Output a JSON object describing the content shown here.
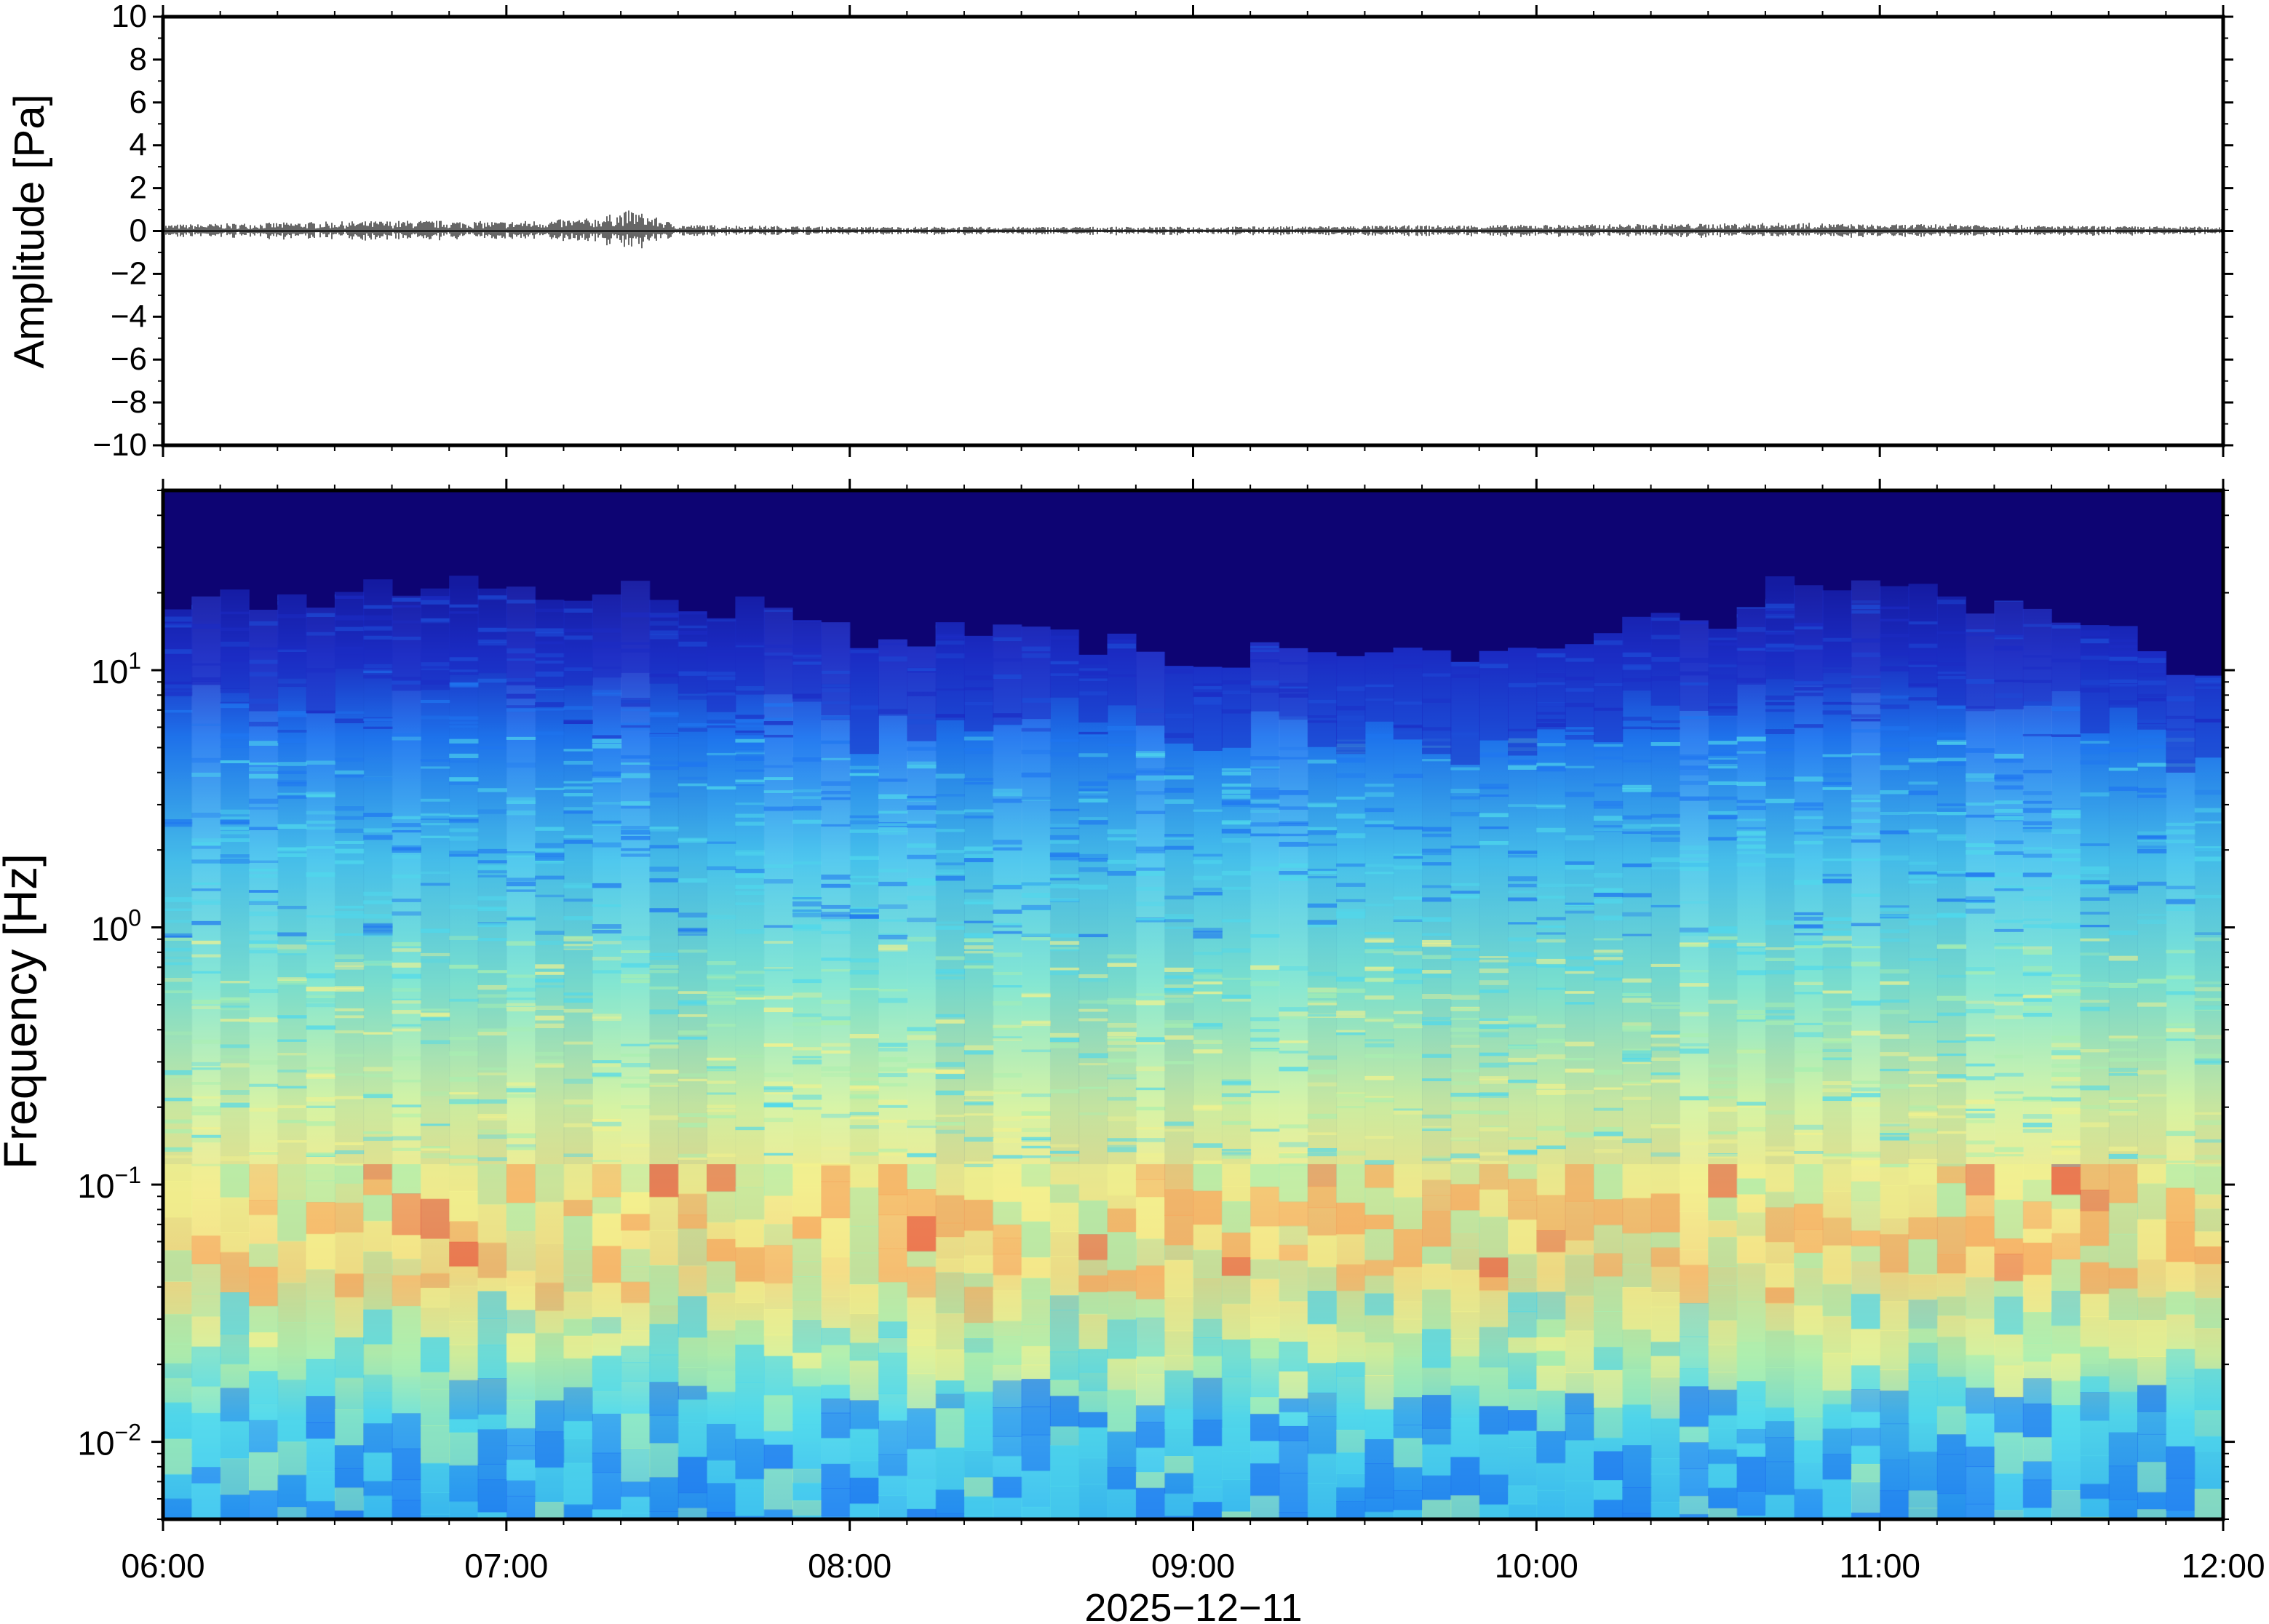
{
  "chart_data": [
    {
      "type": "line",
      "panel": "waveform",
      "ylabel": "Amplitude [Pa]",
      "xlabel": "",
      "ylim": [
        -10,
        10
      ],
      "yticks": [
        10,
        8,
        6,
        4,
        2,
        0,
        -2,
        -4,
        -6,
        -8,
        -10
      ],
      "ytick_labels": [
        "10",
        "8",
        "6",
        "4",
        "2",
        "0",
        "−2",
        "−4",
        "−6",
        "−8",
        "−10"
      ],
      "xlim": [
        "06:00",
        "12:00"
      ],
      "grid": false,
      "baseline": 0,
      "amplitude_envelope": {
        "x": [
          "06:00",
          "06:30",
          "06:45",
          "07:00",
          "07:15",
          "07:22",
          "07:30",
          "08:00",
          "08:30",
          "09:00",
          "09:30",
          "10:00",
          "10:30",
          "10:45",
          "11:00",
          "11:15",
          "11:30",
          "12:00"
        ],
        "values": [
          0.3,
          0.45,
          0.5,
          0.45,
          0.6,
          1.0,
          0.3,
          0.2,
          0.2,
          0.2,
          0.25,
          0.3,
          0.35,
          0.4,
          0.3,
          0.35,
          0.25,
          0.2
        ]
      },
      "series_color": "#000000"
    },
    {
      "type": "heatmap",
      "panel": "spectrogram",
      "ylabel": "Frequency [Hz]",
      "xlabel": "2025−12−11",
      "yscale": "log",
      "ylim": [
        0.005,
        50
      ],
      "yticks": [
        {
          "value": 10,
          "base": "10",
          "exp": "1"
        },
        {
          "value": 1,
          "base": "10",
          "exp": "0"
        },
        {
          "value": 0.1,
          "base": "10",
          "exp": "−1"
        },
        {
          "value": 0.01,
          "base": "10",
          "exp": "−2"
        }
      ],
      "xlim": [
        "06:00",
        "12:00"
      ],
      "xticks": [
        "06:00",
        "07:00",
        "08:00",
        "09:00",
        "10:00",
        "11:00",
        "12:00"
      ],
      "colormap": [
        "#0d0473",
        "#1c2cc4",
        "#1f76f0",
        "#4fd8ec",
        "#a9efb0",
        "#f3f28e",
        "#f6a85e",
        "#e8503a"
      ],
      "upper_frequency_edge_hz": {
        "x": [
          "06:00",
          "06:30",
          "07:00",
          "07:30",
          "08:00",
          "08:30",
          "09:00",
          "09:30",
          "10:00",
          "10:30",
          "10:45",
          "11:00",
          "11:30",
          "12:00"
        ],
        "values": [
          18,
          20,
          22,
          19,
          13,
          14,
          11,
          12,
          13,
          17,
          22,
          21,
          16,
          8
        ]
      },
      "grid": false
    }
  ]
}
